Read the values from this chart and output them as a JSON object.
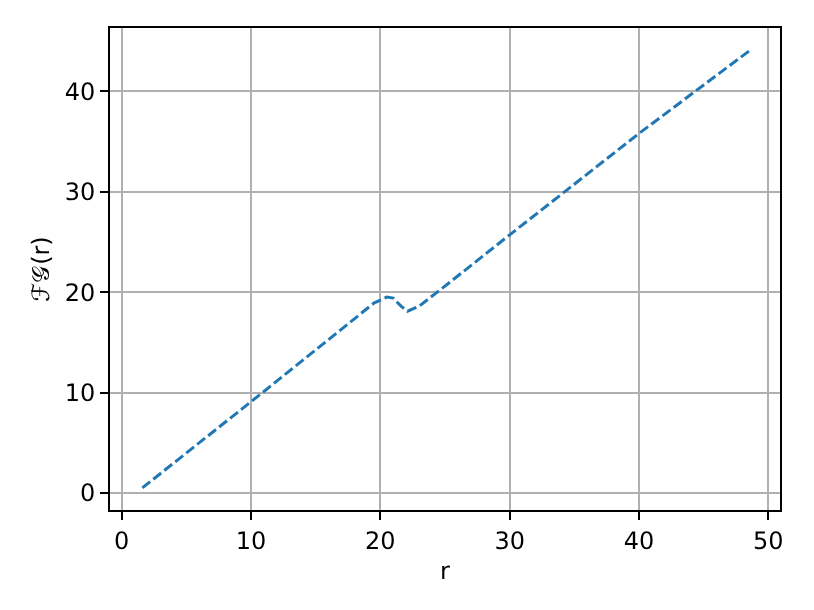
{
  "chart_data": {
    "type": "line",
    "xlabel": "r",
    "ylabel": "ℱ𝒢(r)",
    "x": [
      1.6,
      10.9,
      19.5,
      20.5,
      21,
      21.6,
      22.1,
      23,
      25,
      30,
      40,
      48.6
    ],
    "series": [
      {
        "color": "#1f77b4",
        "values": [
          0.5,
          10,
          18.9,
          19.5,
          19.4,
          18.6,
          18.1,
          18.6,
          20.6,
          25.7,
          35.8,
          44.1
        ]
      }
    ],
    "xlim": [
      -0.9,
      50.9
    ],
    "ylim": [
      -1.7,
      46.3
    ],
    "xticks": [
      0,
      10,
      20,
      30,
      40,
      50
    ],
    "yticks": [
      0,
      10,
      20,
      30,
      40
    ],
    "grid": true,
    "line_style": "dashed",
    "marker": "none"
  }
}
